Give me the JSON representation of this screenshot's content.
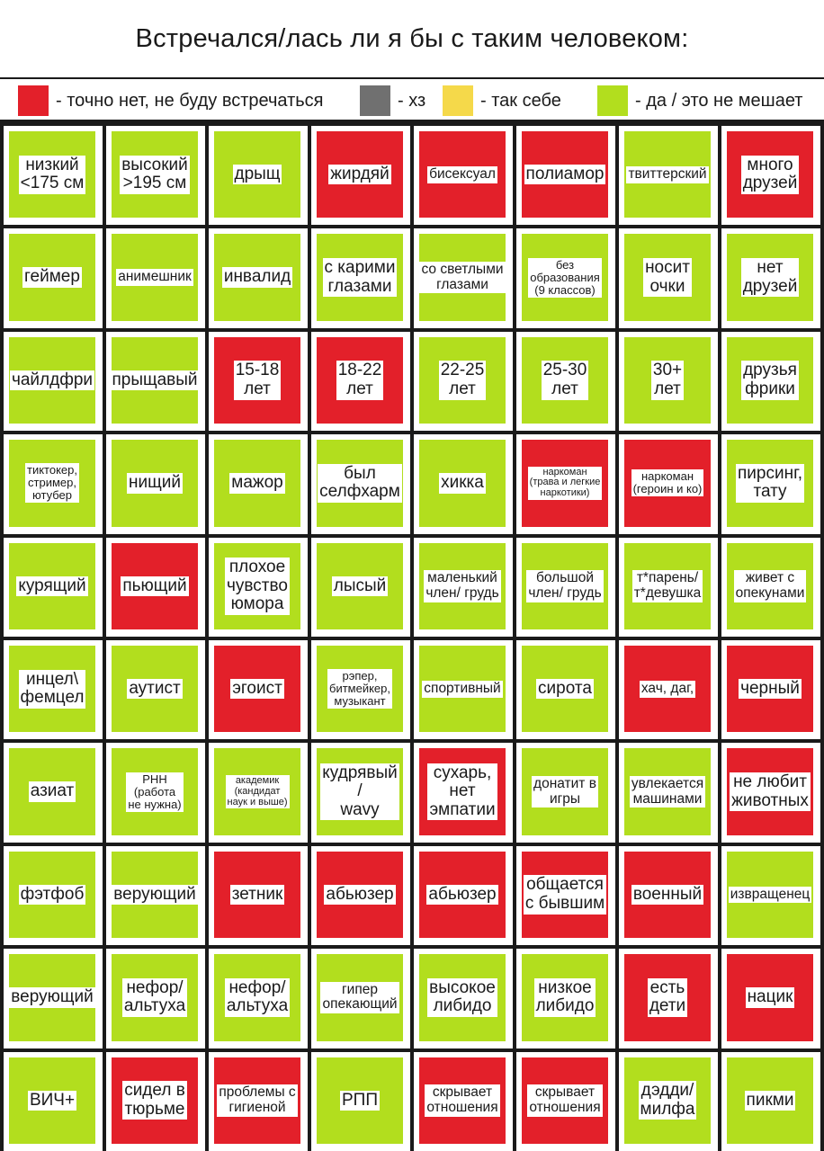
{
  "title": "Встречался/лась ли я бы с таким человеком:",
  "colors": {
    "red": "#e3202a",
    "gray": "#707070",
    "yellow": "#f5d94a",
    "green": "#b2de1e"
  },
  "legend": [
    {
      "color": "red",
      "label": "- точно нет, не буду встречаться"
    },
    {
      "color": "gray",
      "label": "- хз"
    },
    {
      "color": "yellow",
      "label": "- так себе"
    },
    {
      "color": "green",
      "label": "- да / это не мешает"
    }
  ],
  "grid": [
    [
      {
        "text": "низкий\n<175 см",
        "color": "green"
      },
      {
        "text": "высокий\n>195 см",
        "color": "green"
      },
      {
        "text": "дрыщ",
        "color": "green"
      },
      {
        "text": "жирдяй",
        "color": "red"
      },
      {
        "text": "бисексуал",
        "color": "red"
      },
      {
        "text": "полиамор",
        "color": "red"
      },
      {
        "text": "твиттерский",
        "color": "green"
      },
      {
        "text": "много\nдрузей",
        "color": "red"
      }
    ],
    [
      {
        "text": "геймер",
        "color": "green"
      },
      {
        "text": "анимешник",
        "color": "green"
      },
      {
        "text": "инвалид",
        "color": "green"
      },
      {
        "text": "с карими\nглазами",
        "color": "green"
      },
      {
        "text": "со светлыми\nглазами",
        "color": "green"
      },
      {
        "text": "без\nобразования\n(9 классов)",
        "color": "green"
      },
      {
        "text": "носит\nочки",
        "color": "green"
      },
      {
        "text": "нет\nдрузей",
        "color": "green"
      }
    ],
    [
      {
        "text": "чайлдфри",
        "color": "green"
      },
      {
        "text": "прыщавый",
        "color": "green"
      },
      {
        "text": "15-18\nлет",
        "color": "red"
      },
      {
        "text": "18-22\nлет",
        "color": "red"
      },
      {
        "text": "22-25\nлет",
        "color": "green"
      },
      {
        "text": "25-30\nлет",
        "color": "green"
      },
      {
        "text": "30+\nлет",
        "color": "green"
      },
      {
        "text": "друзья\nфрики",
        "color": "green"
      }
    ],
    [
      {
        "text": "тиктокер,\nстример,\nютубер",
        "color": "green"
      },
      {
        "text": "нищий",
        "color": "green"
      },
      {
        "text": "мажор",
        "color": "green"
      },
      {
        "text": "был\nселфхарм",
        "color": "green"
      },
      {
        "text": "хикка",
        "color": "green"
      },
      {
        "text": "наркоман\n(трава и легкие\nнаркотики)",
        "color": "red"
      },
      {
        "text": "наркоман\n(героин и ко)",
        "color": "red"
      },
      {
        "text": "пирсинг,\nтату",
        "color": "green"
      }
    ],
    [
      {
        "text": "курящий",
        "color": "green"
      },
      {
        "text": "пьющий",
        "color": "red"
      },
      {
        "text": "плохое\nчувство\nюмора",
        "color": "green"
      },
      {
        "text": "лысый",
        "color": "green"
      },
      {
        "text": "маленький\nчлен/ грудь",
        "color": "green"
      },
      {
        "text": "большой\nчлен/ грудь",
        "color": "green"
      },
      {
        "text": "т*парень/\nт*девушка",
        "color": "green"
      },
      {
        "text": "живет с\nопекунами",
        "color": "green"
      }
    ],
    [
      {
        "text": "инцел\\\nфемцел",
        "color": "green"
      },
      {
        "text": "аутист",
        "color": "green"
      },
      {
        "text": "эгоист",
        "color": "red"
      },
      {
        "text": "рэпер,\nбитмейкер,\nмузыкант",
        "color": "green"
      },
      {
        "text": "спортивный",
        "color": "green"
      },
      {
        "text": "сирота",
        "color": "green"
      },
      {
        "text": "хач, даг,",
        "color": "red"
      },
      {
        "text": "черный",
        "color": "red"
      }
    ],
    [
      {
        "text": "азиат",
        "color": "green"
      },
      {
        "text": "РНН\n(работа\nне нужна)",
        "color": "green"
      },
      {
        "text": "академик\n(кандидат\nнаук и выше)",
        "color": "green"
      },
      {
        "text": "кудрявый\n/\nwavy",
        "color": "green"
      },
      {
        "text": "сухарь,\nнет\nэмпатии",
        "color": "red"
      },
      {
        "text": "донатит в\nигры",
        "color": "green"
      },
      {
        "text": "увлекается\nмашинами",
        "color": "green"
      },
      {
        "text": "не любит\nживотных",
        "color": "red"
      }
    ],
    [
      {
        "text": "фэтфоб",
        "color": "green"
      },
      {
        "text": "верующий",
        "color": "green"
      },
      {
        "text": "зетник",
        "color": "red"
      },
      {
        "text": "абьюзер",
        "color": "red"
      },
      {
        "text": "абьюзер",
        "color": "red"
      },
      {
        "text": "общается\nс бывшим",
        "color": "red"
      },
      {
        "text": "военный",
        "color": "red"
      },
      {
        "text": "извращенец",
        "color": "green"
      }
    ],
    [
      {
        "text": "верующий",
        "color": "green"
      },
      {
        "text": "нефор/\nальтуха",
        "color": "green"
      },
      {
        "text": "нефор/\nальтуха",
        "color": "green"
      },
      {
        "text": "гипер\nопекающий",
        "color": "green"
      },
      {
        "text": "высокое\nлибидо",
        "color": "green"
      },
      {
        "text": "низкое\nлибидо",
        "color": "green"
      },
      {
        "text": "есть\nдети",
        "color": "red"
      },
      {
        "text": "нацик",
        "color": "red"
      }
    ],
    [
      {
        "text": "ВИЧ+",
        "color": "green"
      },
      {
        "text": "сидел в\nтюрьме",
        "color": "red"
      },
      {
        "text": "проблемы с\nгигиеной",
        "color": "red"
      },
      {
        "text": "РПП",
        "color": "green"
      },
      {
        "text": "скрывает\nотношения",
        "color": "red"
      },
      {
        "text": "скрывает\nотношения",
        "color": "red"
      },
      {
        "text": "дэдди/\nмилфа",
        "color": "green"
      },
      {
        "text": "пикми",
        "color": "green"
      }
    ]
  ]
}
